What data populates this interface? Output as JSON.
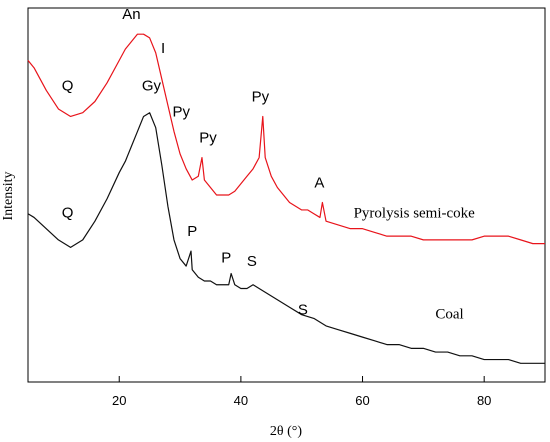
{
  "chart_data": {
    "type": "line",
    "xlabel": "2θ (°)",
    "ylabel": "Intensity",
    "xlim": [
      5,
      90
    ],
    "xticks": [
      20,
      40,
      60,
      80
    ],
    "yticks_shown": false,
    "series": [
      {
        "name": "Pyrolysis semi-coke",
        "color": "#e8141b",
        "x": [
          5,
          6,
          8,
          10,
          12,
          14,
          16,
          18,
          20,
          21,
          22,
          23,
          24,
          25,
          26,
          27,
          28,
          29,
          30,
          31,
          32,
          33,
          33.6,
          34,
          35,
          36,
          37,
          38,
          39,
          40,
          41,
          42,
          43,
          43.6,
          44,
          45,
          46,
          47,
          48,
          49,
          50,
          51,
          52,
          53,
          53.4,
          54,
          56,
          58,
          60,
          62,
          64,
          66,
          68,
          70,
          72,
          74,
          76,
          78,
          80,
          82,
          84,
          86,
          88,
          90
        ],
        "y": [
          0.86,
          0.84,
          0.78,
          0.73,
          0.71,
          0.72,
          0.75,
          0.8,
          0.86,
          0.89,
          0.91,
          0.93,
          0.93,
          0.92,
          0.88,
          0.81,
          0.74,
          0.67,
          0.61,
          0.57,
          0.54,
          0.55,
          0.6,
          0.54,
          0.52,
          0.5,
          0.5,
          0.5,
          0.51,
          0.53,
          0.55,
          0.57,
          0.6,
          0.71,
          0.6,
          0.55,
          0.52,
          0.5,
          0.48,
          0.47,
          0.46,
          0.46,
          0.45,
          0.44,
          0.48,
          0.43,
          0.42,
          0.41,
          0.41,
          0.4,
          0.39,
          0.39,
          0.39,
          0.38,
          0.38,
          0.38,
          0.38,
          0.38,
          0.39,
          0.39,
          0.39,
          0.38,
          0.37,
          0.37
        ]
      },
      {
        "name": "Coal",
        "color": "#111111",
        "x": [
          5,
          6,
          8,
          10,
          12,
          14,
          16,
          18,
          20,
          21,
          22,
          23,
          24,
          25,
          26,
          27,
          28,
          29,
          30,
          31,
          31.8,
          32,
          33,
          34,
          35,
          36,
          37,
          38,
          38.4,
          39,
          40,
          41,
          42,
          43,
          44,
          46,
          48,
          50,
          52,
          54,
          56,
          58,
          60,
          62,
          64,
          66,
          68,
          70,
          72,
          74,
          76,
          78,
          80,
          82,
          84,
          86,
          88,
          90
        ],
        "y": [
          0.45,
          0.44,
          0.41,
          0.38,
          0.36,
          0.38,
          0.43,
          0.49,
          0.56,
          0.59,
          0.63,
          0.67,
          0.71,
          0.72,
          0.68,
          0.58,
          0.47,
          0.38,
          0.33,
          0.31,
          0.35,
          0.3,
          0.28,
          0.27,
          0.27,
          0.26,
          0.26,
          0.26,
          0.29,
          0.26,
          0.25,
          0.25,
          0.26,
          0.25,
          0.24,
          0.22,
          0.2,
          0.18,
          0.17,
          0.15,
          0.14,
          0.13,
          0.12,
          0.11,
          0.1,
          0.1,
          0.09,
          0.09,
          0.08,
          0.08,
          0.07,
          0.07,
          0.06,
          0.06,
          0.06,
          0.05,
          0.05,
          0.05
        ]
      }
    ],
    "annotations": [
      {
        "text": "An",
        "x": 22,
        "y": 0.97,
        "color": "#000000"
      },
      {
        "text": "I",
        "x": 27.2,
        "y": 0.88,
        "color": "#000000"
      },
      {
        "text": "Q",
        "x": 11.5,
        "y": 0.78,
        "color": "#000000"
      },
      {
        "text": "Py",
        "x": 30.2,
        "y": 0.71,
        "color": "#000000"
      },
      {
        "text": "Py",
        "x": 34.6,
        "y": 0.64,
        "color": "#000000"
      },
      {
        "text": "Py",
        "x": 43.2,
        "y": 0.75,
        "color": "#000000"
      },
      {
        "text": "A",
        "x": 52.9,
        "y": 0.52,
        "color": "#000000"
      },
      {
        "text": "Gy",
        "x": 25.3,
        "y": 0.78,
        "color": "#000000"
      },
      {
        "text": "Q",
        "x": 11.5,
        "y": 0.44,
        "color": "#000000"
      },
      {
        "text": "P",
        "x": 32.0,
        "y": 0.39,
        "color": "#000000"
      },
      {
        "text": "P",
        "x": 37.6,
        "y": 0.32,
        "color": "#000000"
      },
      {
        "text": "S",
        "x": 41.8,
        "y": 0.31,
        "color": "#000000"
      },
      {
        "text": "S",
        "x": 50.2,
        "y": 0.18,
        "color": "#000000"
      }
    ],
    "series_labels": [
      {
        "text": "Pyrolysis semi-coke",
        "x": 68.5,
        "y": 0.44
      },
      {
        "text": "Coal",
        "x": 74.3,
        "y": 0.17
      }
    ]
  }
}
